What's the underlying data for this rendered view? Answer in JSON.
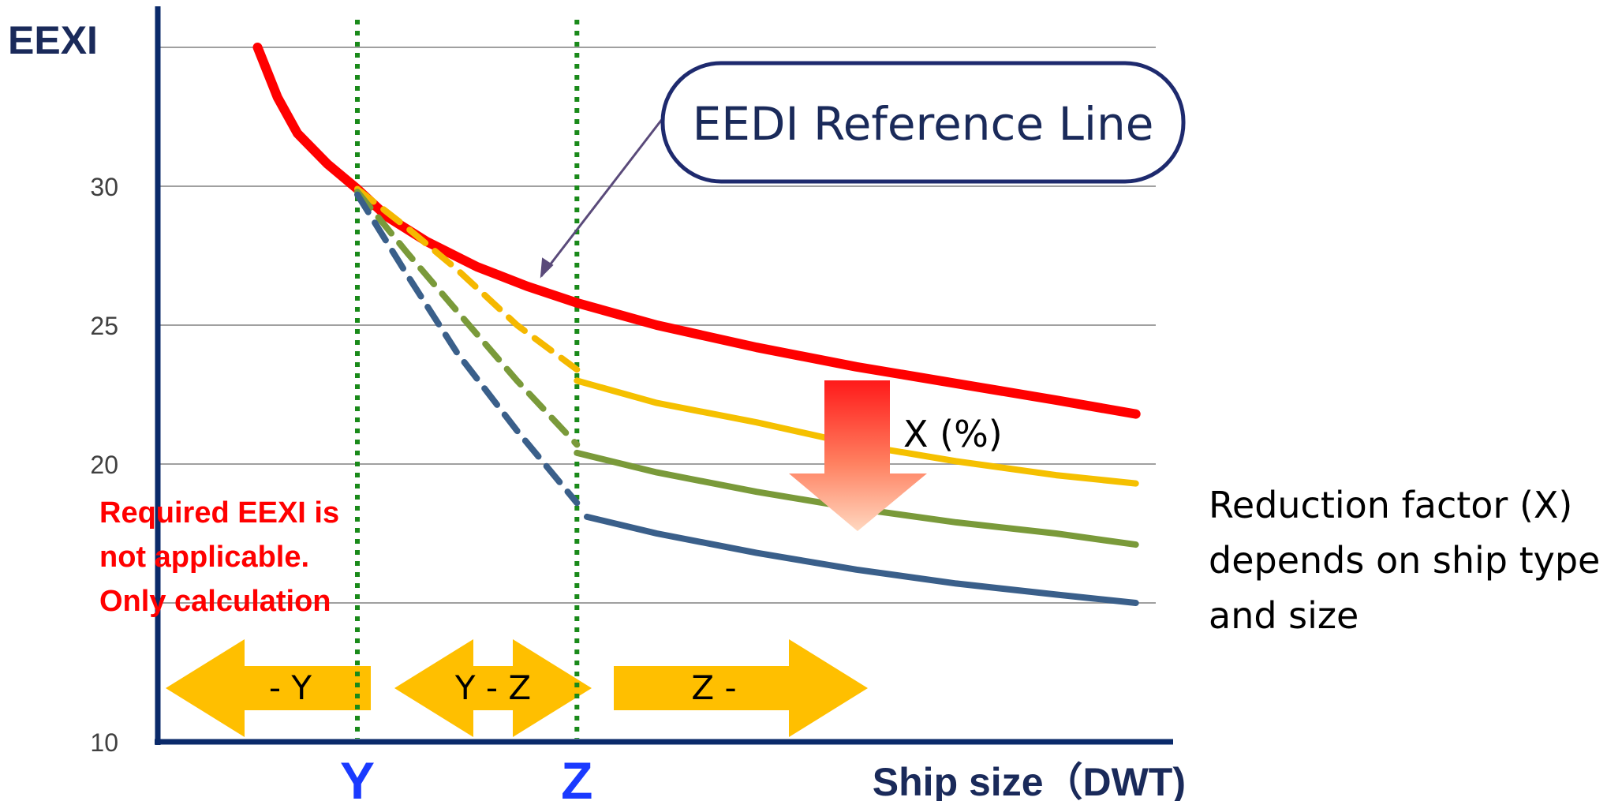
{
  "chart_data": {
    "type": "line",
    "ylabel": "EEXI",
    "xlabel": "Ship size（DWT)",
    "ylim": [
      10,
      35
    ],
    "yticks": [
      10,
      20,
      25,
      30
    ],
    "xlim": [
      0,
      100
    ],
    "thresholds": [
      {
        "label": "Y",
        "x": 20
      },
      {
        "label": "Z",
        "x": 42
      }
    ],
    "grid_y": [
      15,
      20,
      25,
      30,
      35
    ],
    "series": [
      {
        "name": "EEDI Reference Line",
        "color": "#ff0000",
        "style": "solid",
        "points": [
          [
            10,
            35.0
          ],
          [
            12,
            33.2
          ],
          [
            14,
            31.9
          ],
          [
            17,
            30.8
          ],
          [
            20,
            29.9
          ],
          [
            23,
            28.9
          ],
          [
            27,
            28.0
          ],
          [
            32,
            27.1
          ],
          [
            37,
            26.4
          ],
          [
            42,
            25.8
          ],
          [
            50,
            25.0
          ],
          [
            60,
            24.2
          ],
          [
            70,
            23.5
          ],
          [
            80,
            22.9
          ],
          [
            90,
            22.3
          ],
          [
            98,
            21.8
          ]
        ]
      },
      {
        "color": "#f5b800",
        "style": "dashed",
        "points": [
          [
            20,
            29.9
          ],
          [
            25,
            28.5
          ],
          [
            30,
            27.0
          ],
          [
            36,
            25.0
          ],
          [
            42,
            23.4
          ]
        ]
      },
      {
        "color": "#f5c000",
        "style": "solid",
        "points": [
          [
            42,
            23.0
          ],
          [
            50,
            22.2
          ],
          [
            60,
            21.5
          ],
          [
            70,
            20.7
          ],
          [
            80,
            20.1
          ],
          [
            90,
            19.6
          ],
          [
            98,
            19.3
          ]
        ]
      },
      {
        "color": "#7a9a3a",
        "style": "dashed",
        "points": [
          [
            20,
            29.8
          ],
          [
            25,
            27.6
          ],
          [
            30,
            25.5
          ],
          [
            36,
            23.0
          ],
          [
            42,
            20.7
          ]
        ]
      },
      {
        "color": "#7a9a3a",
        "style": "solid",
        "points": [
          [
            42,
            20.4
          ],
          [
            50,
            19.7
          ],
          [
            60,
            19.0
          ],
          [
            70,
            18.4
          ],
          [
            80,
            17.9
          ],
          [
            90,
            17.5
          ],
          [
            98,
            17.1
          ]
        ]
      },
      {
        "color": "#3a5f8a",
        "style": "dashed",
        "points": [
          [
            20,
            29.7
          ],
          [
            25,
            26.8
          ],
          [
            30,
            24.0
          ],
          [
            36,
            21.2
          ],
          [
            42,
            18.6
          ]
        ]
      },
      {
        "color": "#3a5f8a",
        "style": "solid",
        "points": [
          [
            43,
            18.1
          ],
          [
            50,
            17.5
          ],
          [
            60,
            16.8
          ],
          [
            70,
            16.2
          ],
          [
            80,
            15.7
          ],
          [
            90,
            15.3
          ],
          [
            98,
            15.0
          ]
        ]
      }
    ],
    "annotations": {
      "callout": "EEDI Reference Line",
      "reduction": "X (%)",
      "not_applicable": [
        "Required EEXI is",
        "not applicable.",
        "Only calculation"
      ],
      "side_note": [
        "Reduction factor (X)",
        "depends on ship type",
        "and size"
      ]
    },
    "ranges": [
      {
        "label": "- Y"
      },
      {
        "label": "Y - Z"
      },
      {
        "label": "Z -"
      }
    ],
    "colors": {
      "axis": "#0a2a6a",
      "grid": "#a0a0a0",
      "threshold": "#1a8a1a",
      "callout_border": "#1e2a6e",
      "callout_arrow": "#5a4a7a",
      "range_arrow": "#ffbf00",
      "axis_label": "#1a2a5a",
      "threshold_label": "#1a3aff",
      "warning_text": "#ff0000"
    }
  }
}
